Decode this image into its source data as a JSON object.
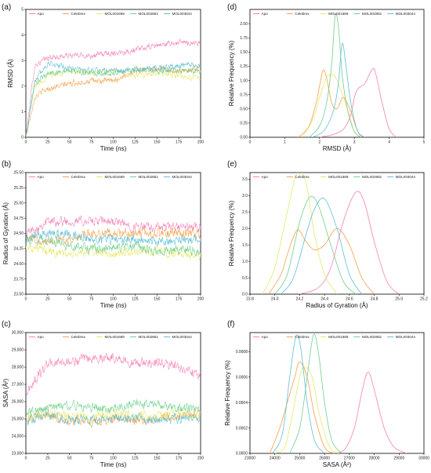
{
  "colors": {
    "Apo": "#f47fb3",
    "Celebrex": "#f5a04a",
    "MOL001689": "#e8e86a",
    "MOL002881": "#6fcf8c",
    "MOL003044": "#5fbfd6"
  },
  "chart_data": [
    {
      "id": "a",
      "panel_label": "(a)",
      "type": "line",
      "xlabel": "Time (ns)",
      "ylabel": "RMSD (Å)",
      "xlim": [
        0,
        200
      ],
      "ylim": [
        0,
        5
      ],
      "xticks": [
        0,
        25,
        50,
        75,
        100,
        125,
        150,
        175,
        200
      ],
      "yticks": [
        0,
        1,
        2,
        3,
        4,
        5
      ],
      "legend": "top",
      "noise": 0.18,
      "start_from_zero": true,
      "series": [
        {
          "name": "Apo",
          "x": [
            0,
            10,
            25,
            50,
            75,
            100,
            125,
            150,
            175,
            200
          ],
          "y": [
            0,
            2.8,
            3.1,
            3.2,
            3.2,
            3.3,
            3.4,
            3.6,
            3.7,
            3.7
          ]
        },
        {
          "name": "Celebrex",
          "x": [
            0,
            10,
            25,
            50,
            75,
            100,
            125,
            150,
            175,
            200
          ],
          "y": [
            0,
            1.6,
            1.9,
            2.1,
            2.2,
            2.2,
            2.6,
            2.7,
            2.6,
            2.7
          ]
        },
        {
          "name": "MOL001689",
          "x": [
            0,
            10,
            25,
            50,
            75,
            100,
            125,
            150,
            175,
            200
          ],
          "y": [
            0,
            2.0,
            2.4,
            2.6,
            2.5,
            2.6,
            2.4,
            2.5,
            2.4,
            2.3
          ]
        },
        {
          "name": "MOL002881",
          "x": [
            0,
            10,
            25,
            50,
            75,
            100,
            125,
            150,
            175,
            200
          ],
          "y": [
            0,
            2.1,
            2.5,
            2.6,
            2.5,
            2.5,
            2.7,
            2.6,
            2.6,
            2.6
          ]
        },
        {
          "name": "MOL003044",
          "x": [
            0,
            10,
            25,
            50,
            75,
            100,
            125,
            150,
            175,
            200
          ],
          "y": [
            0,
            2.2,
            2.9,
            2.7,
            2.6,
            2.6,
            2.6,
            2.7,
            2.8,
            2.8
          ]
        }
      ]
    },
    {
      "id": "b",
      "panel_label": "(b)",
      "type": "line",
      "xlabel": "Time (ns)",
      "ylabel": "Radius of Gyration (Å)",
      "xlim": [
        0,
        200
      ],
      "ylim": [
        23.5,
        25.5
      ],
      "xticks": [
        0,
        25,
        50,
        75,
        100,
        125,
        150,
        175,
        200
      ],
      "yticks": [
        23.5,
        23.75,
        24.0,
        24.25,
        24.5,
        24.75,
        25.0,
        25.25,
        25.5
      ],
      "ytick_labels": [
        "23.50",
        "23.75",
        "24.00",
        "24.25",
        "24.50",
        "24.75",
        "25.00",
        "25.25",
        "25.50"
      ],
      "legend": "top",
      "noise": 0.12,
      "start_from_zero": false,
      "series": [
        {
          "name": "Apo",
          "x": [
            0,
            25,
            50,
            75,
            100,
            125,
            150,
            175,
            200
          ],
          "y": [
            24.5,
            24.7,
            24.7,
            24.7,
            24.7,
            24.6,
            24.6,
            24.6,
            24.6
          ]
        },
        {
          "name": "Celebrex",
          "x": [
            0,
            25,
            50,
            75,
            100,
            125,
            150,
            175,
            200
          ],
          "y": [
            24.4,
            24.4,
            24.4,
            24.5,
            24.5,
            24.5,
            24.5,
            24.5,
            24.5
          ]
        },
        {
          "name": "MOL001689",
          "x": [
            0,
            25,
            50,
            75,
            100,
            125,
            150,
            175,
            200
          ],
          "y": [
            24.3,
            24.2,
            24.15,
            24.2,
            24.15,
            24.2,
            24.2,
            24.15,
            24.15
          ]
        },
        {
          "name": "MOL002881",
          "x": [
            0,
            25,
            50,
            75,
            100,
            125,
            150,
            175,
            200
          ],
          "y": [
            24.4,
            24.4,
            24.3,
            24.25,
            24.25,
            24.3,
            24.2,
            24.25,
            24.2
          ]
        },
        {
          "name": "MOL003044",
          "x": [
            0,
            25,
            50,
            75,
            100,
            125,
            150,
            175,
            200
          ],
          "y": [
            24.4,
            24.5,
            24.5,
            24.4,
            24.4,
            24.4,
            24.35,
            24.4,
            24.4
          ]
        }
      ]
    },
    {
      "id": "c",
      "panel_label": "(c)",
      "type": "line",
      "xlabel": "Time (ns)",
      "ylabel": "SASA (Å²)",
      "xlim": [
        0,
        200
      ],
      "ylim": [
        23000,
        30000
      ],
      "xticks": [
        0,
        25,
        50,
        75,
        100,
        125,
        150,
        175,
        200
      ],
      "yticks": [
        23000,
        24000,
        25000,
        26000,
        27000,
        28000,
        29000,
        30000
      ],
      "ytick_labels": [
        "23,000",
        "24,000",
        "25,000",
        "26,000",
        "27,000",
        "28,000",
        "29,000",
        "30,000"
      ],
      "legend": "top",
      "noise": 420,
      "start_from_zero": false,
      "series": [
        {
          "name": "Apo",
          "x": [
            0,
            25,
            50,
            75,
            100,
            125,
            150,
            175,
            200
          ],
          "y": [
            26500,
            28200,
            28300,
            28500,
            28600,
            28200,
            28300,
            28000,
            27600
          ]
        },
        {
          "name": "Celebrex",
          "x": [
            0,
            25,
            50,
            75,
            100,
            125,
            150,
            175,
            200
          ],
          "y": [
            25000,
            25200,
            24900,
            24800,
            25000,
            24900,
            25000,
            25200,
            25300
          ]
        },
        {
          "name": "MOL001689",
          "x": [
            0,
            25,
            50,
            75,
            100,
            125,
            150,
            175,
            200
          ],
          "y": [
            25100,
            25300,
            25200,
            25100,
            25300,
            25200,
            25200,
            25300,
            25200
          ]
        },
        {
          "name": "MOL002881",
          "x": [
            0,
            25,
            50,
            75,
            100,
            125,
            150,
            175,
            200
          ],
          "y": [
            25400,
            25600,
            25800,
            25700,
            25600,
            25900,
            25800,
            25600,
            25600
          ]
        },
        {
          "name": "MOL003044",
          "x": [
            0,
            25,
            50,
            75,
            100,
            125,
            150,
            175,
            200
          ],
          "y": [
            24900,
            25200,
            25000,
            24900,
            25000,
            25000,
            24900,
            25000,
            25100
          ]
        }
      ]
    },
    {
      "id": "d",
      "panel_label": "(d)",
      "type": "line",
      "xlabel": "RMSD (Å)",
      "ylabel": "Relative Frequency (%)",
      "xlim": [
        0,
        5
      ],
      "ylim": [
        0,
        2.25
      ],
      "xticks": [
        0,
        1,
        2,
        3,
        4,
        5
      ],
      "yticks": [
        0,
        0.25,
        0.5,
        0.75,
        1.0,
        1.25,
        1.5,
        1.75,
        2.0
      ],
      "ytick_labels": [
        "0.00",
        "0.25",
        "0.50",
        "0.75",
        "1.00",
        "1.25",
        "1.50",
        "1.75",
        "2.00"
      ],
      "legend": "top",
      "series": [
        {
          "name": "Apo",
          "x": [
            2.0,
            2.4,
            2.7,
            2.9,
            3.0,
            3.1,
            3.3,
            3.5,
            3.6,
            3.8,
            4.0,
            4.2
          ],
          "y": [
            0,
            0.05,
            0.15,
            0.4,
            0.7,
            0.85,
            0.95,
            1.18,
            1.15,
            0.6,
            0.15,
            0
          ]
        },
        {
          "name": "Celebrex",
          "x": [
            1.4,
            1.7,
            1.9,
            2.0,
            2.1,
            2.2,
            2.35,
            2.5,
            2.6,
            2.7,
            2.9,
            3.1,
            3.3
          ],
          "y": [
            0,
            0.2,
            0.6,
            0.9,
            1.18,
            1.05,
            0.6,
            0.5,
            0.62,
            0.7,
            0.45,
            0.1,
            0
          ]
        },
        {
          "name": "MOL001689",
          "x": [
            1.5,
            1.8,
            2.0,
            2.2,
            2.4,
            2.5,
            2.6,
            2.8,
            3.0,
            3.2
          ],
          "y": [
            0,
            0.3,
            0.7,
            1.05,
            1.1,
            1.0,
            0.85,
            0.5,
            0.1,
            0
          ]
        },
        {
          "name": "MOL002881",
          "x": [
            1.7,
            2.0,
            2.2,
            2.35,
            2.45,
            2.55,
            2.65,
            2.8,
            3.0,
            3.2
          ],
          "y": [
            0,
            0.2,
            0.6,
            1.3,
            2.15,
            1.9,
            1.1,
            0.5,
            0.1,
            0
          ]
        },
        {
          "name": "MOL003044",
          "x": [
            1.8,
            2.1,
            2.3,
            2.45,
            2.55,
            2.65,
            2.75,
            2.9,
            3.1,
            3.3
          ],
          "y": [
            0,
            0.1,
            0.3,
            0.6,
            1.0,
            1.65,
            1.3,
            0.6,
            0.1,
            0
          ]
        }
      ]
    },
    {
      "id": "e",
      "panel_label": "(e)",
      "type": "line",
      "xlabel": "Radius of Gyration (Å)",
      "ylabel": "Relative Frequency (%)",
      "xlim": [
        23.8,
        25.2
      ],
      "ylim": [
        0,
        3.7
      ],
      "xticks": [
        23.8,
        24.0,
        24.2,
        24.4,
        24.6,
        24.8,
        25.0,
        25.2
      ],
      "xtick_labels": [
        "23.8",
        "24.0",
        "24.2",
        "24.4",
        "24.6",
        "24.8",
        "25.0",
        "25.2"
      ],
      "yticks": [
        0,
        0.5,
        1.0,
        1.5,
        2.0,
        2.5,
        3.0,
        3.5
      ],
      "ytick_labels": [
        "0.0",
        "0.5",
        "1.0",
        "1.5",
        "2.0",
        "2.5",
        "3.0",
        "3.5"
      ],
      "legend": "top",
      "series": [
        {
          "name": "Apo",
          "x": [
            24.2,
            24.35,
            24.45,
            24.55,
            24.65,
            24.72,
            24.8,
            24.9,
            25.0
          ],
          "y": [
            0,
            0.2,
            0.8,
            2.2,
            3.1,
            2.8,
            1.6,
            0.4,
            0
          ]
        },
        {
          "name": "Celebrex",
          "x": [
            23.95,
            24.05,
            24.1,
            24.18,
            24.25,
            24.32,
            24.4,
            24.5,
            24.6,
            24.7,
            24.8
          ],
          "y": [
            0,
            0.6,
            1.2,
            1.95,
            1.6,
            1.35,
            1.5,
            2.0,
            1.5,
            0.5,
            0
          ]
        },
        {
          "name": "MOL001689",
          "x": [
            23.9,
            24.0,
            24.1,
            24.18,
            24.25,
            24.32,
            24.4,
            24.5
          ],
          "y": [
            0,
            0.8,
            2.5,
            3.7,
            3.4,
            1.8,
            0.6,
            0
          ]
        },
        {
          "name": "MOL002881",
          "x": [
            24.0,
            24.1,
            24.2,
            24.28,
            24.35,
            24.45,
            24.55,
            24.65
          ],
          "y": [
            0,
            0.6,
            2.2,
            2.95,
            2.7,
            1.5,
            0.4,
            0
          ]
        },
        {
          "name": "MOL003044",
          "x": [
            24.05,
            24.15,
            24.25,
            24.32,
            24.4,
            24.5,
            24.6,
            24.7
          ],
          "y": [
            0,
            0.5,
            1.8,
            2.6,
            2.9,
            2.0,
            0.6,
            0
          ]
        }
      ]
    },
    {
      "id": "f",
      "panel_label": "(f)",
      "type": "line",
      "xlabel": "SASA (Å²)",
      "ylabel": "Relative Frequency (%)",
      "xlim": [
        23000,
        30000
      ],
      "ylim": [
        0,
        0.00095
      ],
      "xticks": [
        23000,
        24000,
        25000,
        26000,
        27000,
        28000,
        29000,
        30000
      ],
      "xtick_labels": [
        "23000",
        "24000",
        "25000",
        "26000",
        "27000",
        "28000",
        "29000",
        "30000"
      ],
      "yticks": [
        0,
        0.0002,
        0.0004,
        0.0006,
        0.0008
      ],
      "ytick_labels": [
        "0.0000",
        "0.0002",
        "0.0004",
        "0.0006",
        "0.0008"
      ],
      "legend": "top",
      "series": [
        {
          "name": "Apo",
          "x": [
            26300,
            26800,
            27200,
            27500,
            27750,
            28000,
            28400,
            28800,
            29300
          ],
          "y": [
            0,
            3e-05,
            0.0002,
            0.00048,
            0.00064,
            0.0005,
            0.0002,
            5e-05,
            0
          ]
        },
        {
          "name": "Celebrex",
          "x": [
            23800,
            24200,
            24500,
            24800,
            25000,
            25300,
            25600,
            26000,
            26400
          ],
          "y": [
            0,
            0.0002,
            0.0004,
            0.0006,
            0.00072,
            0.0006,
            0.0003,
            5e-05,
            0
          ]
        },
        {
          "name": "MOL001689",
          "x": [
            24000,
            24400,
            24700,
            25000,
            25200,
            25500,
            25800,
            26200,
            26600
          ],
          "y": [
            0,
            5e-05,
            0.0003,
            0.0006,
            0.00068,
            0.0006,
            0.0003,
            5e-05,
            0
          ]
        },
        {
          "name": "MOL002881",
          "x": [
            24600,
            25000,
            25300,
            25550,
            25750,
            26000,
            26300,
            26700
          ],
          "y": [
            0,
            0.0002,
            0.0006,
            0.00093,
            0.0008,
            0.0004,
            0.0001,
            0
          ]
        },
        {
          "name": "MOL003044",
          "x": [
            23900,
            24300,
            24600,
            24850,
            25050,
            25300,
            25600,
            26000
          ],
          "y": [
            0,
            0.00015,
            0.0006,
            0.00092,
            0.00082,
            0.0004,
            0.0001,
            0
          ]
        }
      ]
    }
  ]
}
